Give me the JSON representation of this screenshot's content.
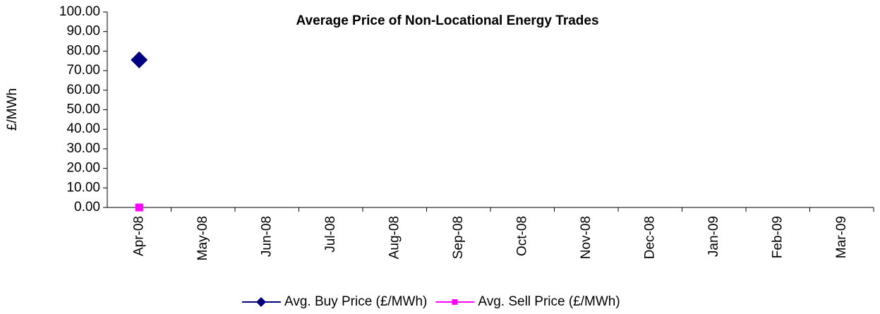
{
  "chart_data": {
    "type": "line",
    "title": "Average Price of Non-Locational Energy Trades",
    "y_label": "£/MWh",
    "categories": [
      "Apr-08",
      "May-08",
      "Jun-08",
      "Jul-08",
      "Aug-08",
      "Sep-08",
      "Oct-08",
      "Nov-08",
      "Dec-08",
      "Jan-09",
      "Feb-09",
      "Mar-09"
    ],
    "series": [
      {
        "name": "Avg. Buy Price (£/MWh)",
        "color": "#000080",
        "marker": "diamond",
        "values": [
          75.5,
          null,
          null,
          null,
          null,
          null,
          null,
          null,
          null,
          null,
          null,
          null
        ]
      },
      {
        "name": "Avg. Sell Price (£/MWh)",
        "color": "#ff00ff",
        "marker": "square",
        "values": [
          0,
          null,
          null,
          null,
          null,
          null,
          null,
          null,
          null,
          null,
          null,
          null
        ]
      }
    ],
    "ylim": [
      0,
      100
    ],
    "yticks": [
      {
        "value": 0,
        "label": "0.00"
      },
      {
        "value": 10,
        "label": "10.00"
      },
      {
        "value": 20,
        "label": "20.00"
      },
      {
        "value": 30,
        "label": "30.00"
      },
      {
        "value": 40,
        "label": "40.00"
      },
      {
        "value": 50,
        "label": "50.00"
      },
      {
        "value": 60,
        "label": "60.00"
      },
      {
        "value": 70,
        "label": "70.00"
      },
      {
        "value": 80,
        "label": "80.00"
      },
      {
        "value": 90,
        "label": "90.00"
      },
      {
        "value": 100,
        "label": "100.00"
      }
    ],
    "grid": false,
    "legend": "bottom"
  }
}
